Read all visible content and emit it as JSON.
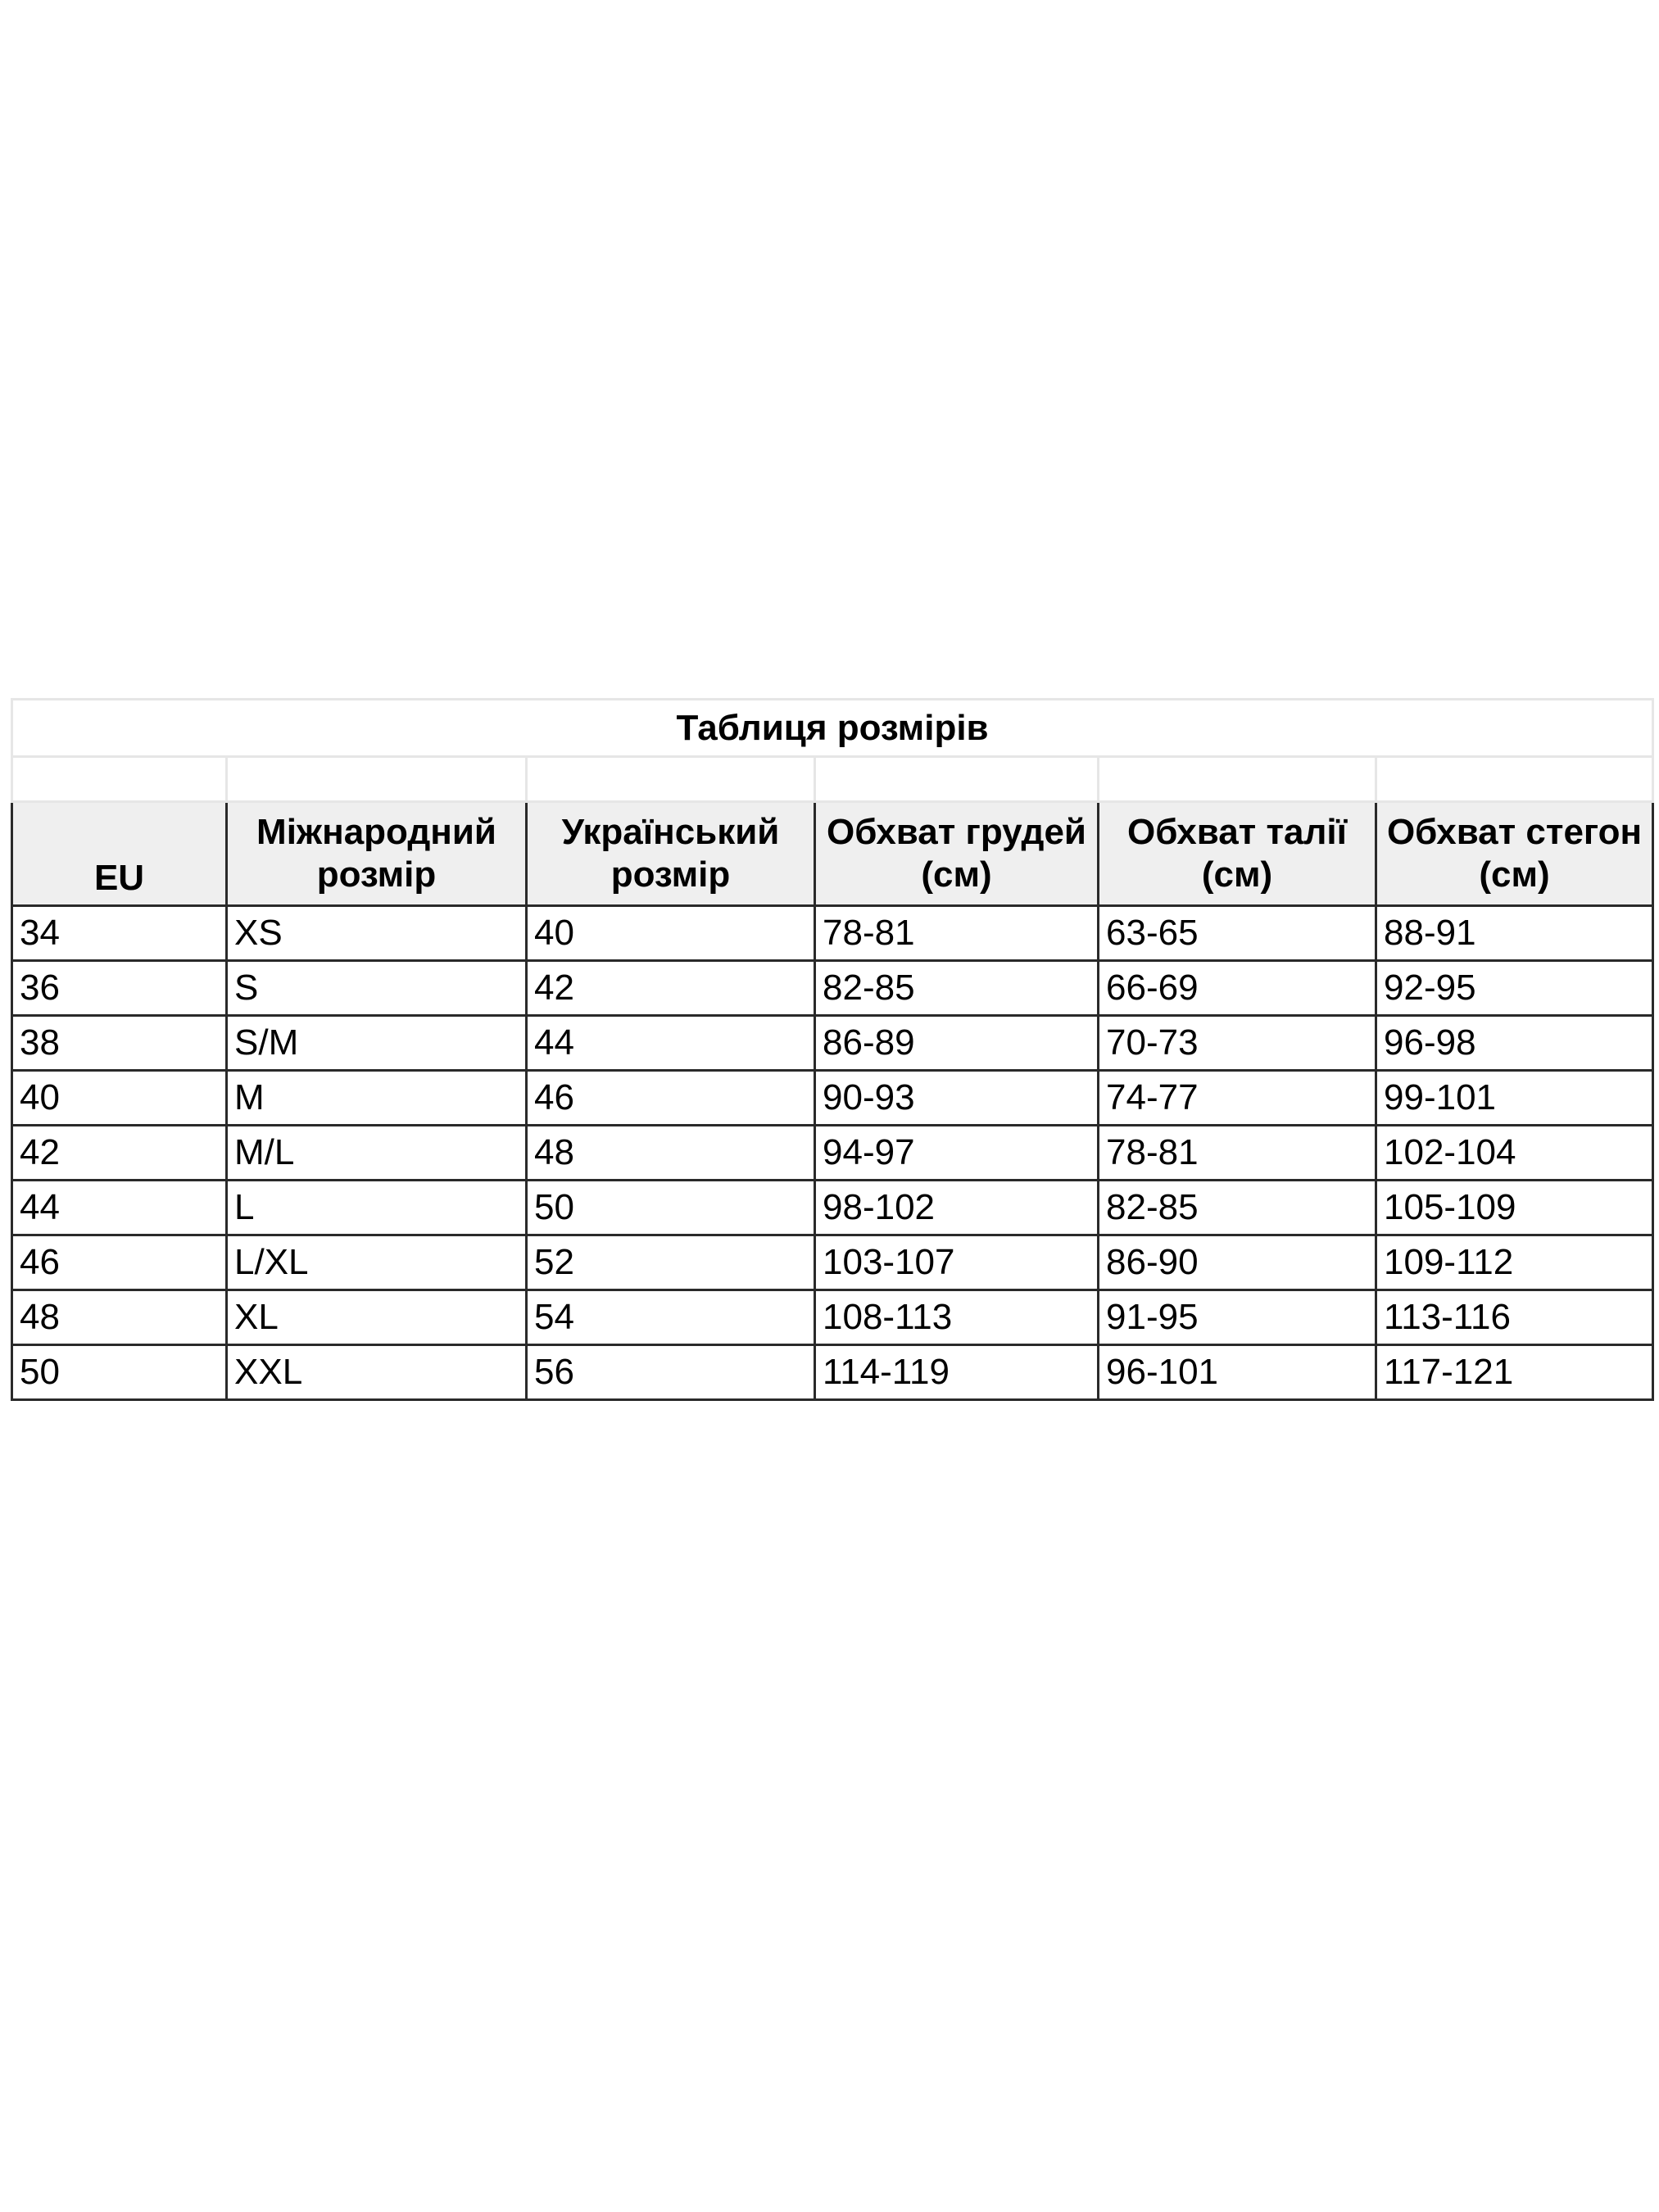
{
  "title": "Таблиця розмірів",
  "headers": [
    "EU",
    "Міжнародний розмір",
    "Український розмір",
    "Обхват грудей (см)",
    "Обхват талії (см)",
    "Обхват стегон (см)"
  ],
  "rows": [
    [
      "34",
      "XS",
      "40",
      "78-81",
      "63-65",
      "88-91"
    ],
    [
      "36",
      "S",
      "42",
      "82-85",
      "66-69",
      "92-95"
    ],
    [
      "38",
      "S/M",
      "44",
      "86-89",
      "70-73",
      "96-98"
    ],
    [
      "40",
      "M",
      "46",
      "90-93",
      "74-77",
      "99-101"
    ],
    [
      "42",
      "M/L",
      "48",
      "94-97",
      "78-81",
      "102-104"
    ],
    [
      "44",
      "L",
      "50",
      "98-102",
      "82-85",
      "105-109"
    ],
    [
      "46",
      "L/XL",
      "52",
      "103-107",
      "86-90",
      "109-112"
    ],
    [
      "48",
      "XL",
      "54",
      "108-113",
      "91-95",
      "113-116"
    ],
    [
      "50",
      "XXL",
      "56",
      "114-119",
      "96-101",
      "117-121"
    ]
  ]
}
